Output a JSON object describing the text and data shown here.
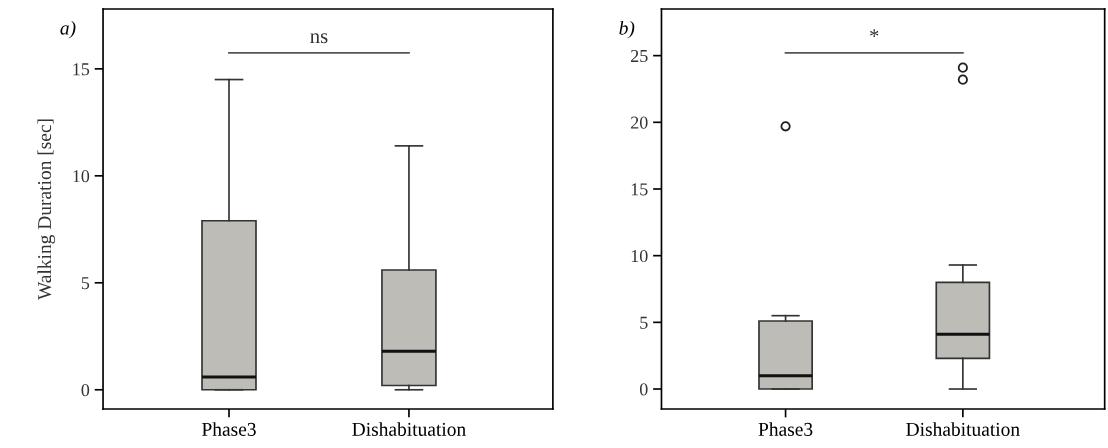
{
  "chart_data": [
    {
      "type": "box",
      "title": "a)",
      "ylabel": "Walking Duration [sec]",
      "categories": [
        "Phase3",
        "Dishabituation"
      ],
      "color": "#bdbcb7",
      "boxes": [
        {
          "low": 0,
          "q1": 0,
          "median": 0.6,
          "q3": 7.9,
          "high": 14.5
        },
        {
          "low": 0,
          "q1": 0.2,
          "median": 1.8,
          "q3": 5.6,
          "high": 11.4
        }
      ],
      "ylim": [
        -0.9,
        17.8
      ],
      "yticks": [
        0,
        5,
        10,
        15
      ],
      "grid": false,
      "annotations": [
        "ns"
      ]
    },
    {
      "type": "box",
      "title": "b)",
      "categories": [
        "Phase3",
        "Dishabituation"
      ],
      "color": "#bdbcb7",
      "boxes": [
        {
          "low": 0,
          "q1": 0,
          "median": 1.0,
          "q3": 5.1,
          "high": 5.5,
          "outliers": [
            19.7
          ]
        },
        {
          "low": 0,
          "q1": 2.3,
          "median": 4.1,
          "q3": 8.0,
          "high": 9.3,
          "outliers": [
            23.2,
            24.1
          ]
        }
      ],
      "ylim": [
        -1.5,
        28.5
      ],
      "yticks": [
        0,
        5,
        10,
        15,
        20,
        25
      ],
      "grid": false,
      "annotations": [
        "*"
      ]
    }
  ]
}
